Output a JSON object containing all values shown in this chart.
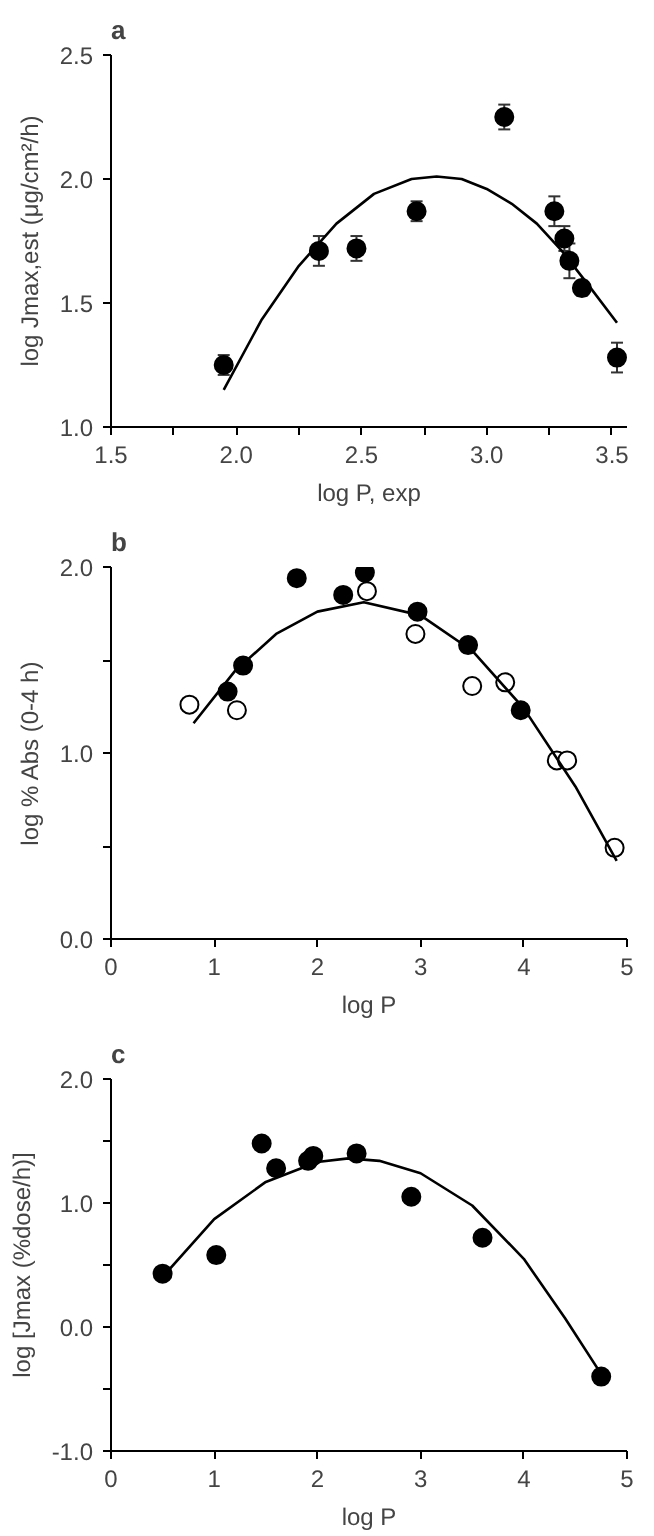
{
  "chart_data": [
    {
      "type": "scatter",
      "title": "a",
      "xlabel": "log P, exp",
      "ylabel": "log Jmax,est (μg/cm²/h)",
      "xlim": [
        1.5,
        3.56
      ],
      "ylim": [
        1.0,
        2.5
      ],
      "xticks": [
        1.5,
        {
          "value": 1.75,
          "label": null
        },
        {
          "value": 2.0,
          "label": "2.0"
        },
        {
          "value": 2.25,
          "label": null
        },
        2.5,
        {
          "value": 2.75,
          "label": null
        },
        {
          "value": 3.0,
          "label": "3.0"
        },
        {
          "value": 3.25,
          "label": null
        },
        3.5
      ],
      "yticks": [
        {
          "value": 1.0,
          "label": "1.0"
        },
        1.5,
        {
          "value": 2.0,
          "label": "2.0"
        },
        2.5
      ],
      "grid": false,
      "series": [
        {
          "color": "#000000",
          "marker": "circle",
          "x": [
            1.95,
            2.33,
            2.48,
            2.72,
            3.07,
            3.27,
            3.31,
            3.33,
            3.38,
            3.52
          ],
          "values": [
            1.25,
            1.71,
            1.72,
            1.87,
            2.25,
            1.87,
            1.76,
            1.67,
            1.56,
            1.28
          ],
          "errors": [
            0.04,
            0.06,
            0.05,
            0.04,
            0.05,
            0.06,
            0.05,
            0.07,
            0.03,
            0.06
          ]
        },
        {
          "type": "line",
          "color": "#000000",
          "marker": "none",
          "line_style": "solid",
          "x": [
            1.95,
            2.1,
            2.25,
            2.4,
            2.55,
            2.7,
            2.8,
            2.9,
            3.0,
            3.1,
            3.2,
            3.3,
            3.4,
            3.52
          ],
          "values": [
            1.15,
            1.43,
            1.65,
            1.82,
            1.94,
            2.0,
            2.01,
            2.0,
            1.96,
            1.9,
            1.82,
            1.71,
            1.58,
            1.42
          ]
        }
      ]
    },
    {
      "type": "scatter",
      "title": "b",
      "xlabel": "log P",
      "ylabel": "log % Abs (0-4 h)",
      "xlim": [
        0,
        5
      ],
      "ylim": [
        0,
        2.0
      ],
      "xticks": [
        0,
        1,
        2,
        3,
        4,
        5
      ],
      "yticks": [
        {
          "value": 0,
          "label": "0.0"
        },
        {
          "value": 0.5,
          "label": null
        },
        {
          "value": 1,
          "label": "1.0"
        },
        {
          "value": 1.5,
          "label": null
        },
        {
          "value": 2,
          "label": "2.0"
        }
      ],
      "grid": false,
      "series": [
        {
          "color": "#000000",
          "marker": "circle",
          "x": [
            1.13,
            1.28,
            1.8,
            2.25,
            2.46,
            2.97,
            3.46,
            3.97
          ],
          "values": [
            1.33,
            1.47,
            1.94,
            1.85,
            1.97,
            1.76,
            1.58,
            1.23
          ]
        },
        {
          "color": "#ffffff",
          "marker": "circle",
          "x": [
            0.76,
            1.22,
            2.48,
            2.95,
            3.5,
            3.82,
            4.32,
            4.42,
            4.88
          ],
          "values": [
            1.26,
            1.23,
            1.87,
            1.64,
            1.36,
            1.38,
            0.96,
            0.96,
            0.49
          ]
        },
        {
          "type": "line",
          "color": "#000000",
          "marker": "none",
          "line_style": "solid",
          "x": [
            0.8,
            1.2,
            1.6,
            2.0,
            2.45,
            3.0,
            3.5,
            4.0,
            4.5,
            4.9
          ],
          "values": [
            1.16,
            1.44,
            1.64,
            1.76,
            1.81,
            1.74,
            1.55,
            1.24,
            0.82,
            0.42
          ]
        }
      ]
    },
    {
      "type": "scatter",
      "title": "c",
      "xlabel": "log P",
      "ylabel": "log [Jmax (%dose/h)]",
      "xlim": [
        0,
        5
      ],
      "ylim": [
        -1,
        2.0
      ],
      "xticks": [
        0,
        1,
        2,
        3,
        4,
        5
      ],
      "yticks": [
        {
          "value": -1,
          "label": "-1.0"
        },
        {
          "value": -0.5,
          "label": null
        },
        {
          "value": 0,
          "label": "0.0"
        },
        {
          "value": 0.5,
          "label": null
        },
        {
          "value": 1,
          "label": "1.0"
        },
        {
          "value": 1.5,
          "label": null
        },
        {
          "value": 2,
          "label": "2.0"
        }
      ],
      "grid": false,
      "series": [
        {
          "color": "#000000",
          "marker": "circle",
          "x": [
            0.5,
            1.02,
            1.46,
            1.6,
            1.91,
            1.96,
            2.38,
            2.91,
            3.6,
            4.75
          ],
          "values": [
            0.43,
            0.58,
            1.48,
            1.28,
            1.34,
            1.38,
            1.4,
            1.05,
            0.72,
            -0.4
          ]
        },
        {
          "type": "line",
          "color": "#000000",
          "marker": "none",
          "line_style": "solid",
          "x": [
            0.55,
            1.0,
            1.5,
            2.0,
            2.3,
            2.6,
            3.0,
            3.5,
            4.0,
            4.4,
            4.75
          ],
          "values": [
            0.45,
            0.87,
            1.17,
            1.33,
            1.36,
            1.34,
            1.24,
            0.98,
            0.55,
            0.07,
            -0.38
          ]
        }
      ]
    }
  ]
}
